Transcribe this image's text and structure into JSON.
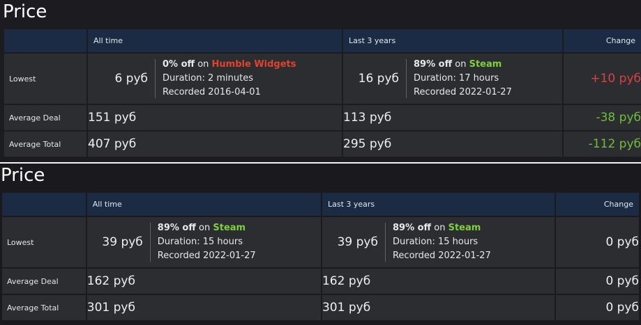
{
  "panels": [
    {
      "title": "Price",
      "headers": {
        "blank": "",
        "all_time": "All time",
        "last3": "Last 3 years",
        "change": "Change"
      },
      "lowest": {
        "label": "Lowest",
        "all_time": {
          "price": "6 руб",
          "discount": "0% off",
          "on": "on",
          "shop": "Humble Widgets",
          "duration": "Duration: 2 minutes",
          "recorded": "Recorded 2016-04-01"
        },
        "last3": {
          "price": "16 руб",
          "discount": "89% off",
          "on": "on",
          "shop": "Steam",
          "duration": "Duration: 17 hours",
          "recorded": "Recorded 2022-01-27"
        },
        "change": "+10 руб"
      },
      "average_deal": {
        "label": "Average Deal",
        "all_time": "151 руб",
        "last3": "113 руб",
        "change": "-38 руб"
      },
      "average_total": {
        "label": "Average Total",
        "all_time": "407 руб",
        "last3": "295 руб",
        "change": "-112 руб"
      }
    },
    {
      "title": "Price",
      "headers": {
        "blank": "",
        "all_time": "All time",
        "last3": "Last 3 years",
        "change": "Change"
      },
      "lowest": {
        "label": "Lowest",
        "all_time": {
          "price": "39 руб",
          "discount": "89% off",
          "on": "on",
          "shop": "Steam",
          "duration": "Duration: 15 hours",
          "recorded": "Recorded 2022-01-27"
        },
        "last3": {
          "price": "39 руб",
          "discount": "89% off",
          "on": "on",
          "shop": "Steam",
          "duration": "Duration: 15 hours",
          "recorded": "Recorded 2022-01-27"
        },
        "change": "0 руб"
      },
      "average_deal": {
        "label": "Average Deal",
        "all_time": "162 руб",
        "last3": "162 руб",
        "change": "0 руб"
      },
      "average_total": {
        "label": "Average Total",
        "all_time": "301 руб",
        "last3": "301 руб",
        "change": "0 руб"
      }
    }
  ],
  "colors": {
    "increase": "#d94242",
    "decrease": "#6fbf3a",
    "shop_humble": "#e0432e",
    "shop_steam": "#7ed13d",
    "header_bg": "#1a2b43",
    "cell_bg": "#2c2d31"
  }
}
